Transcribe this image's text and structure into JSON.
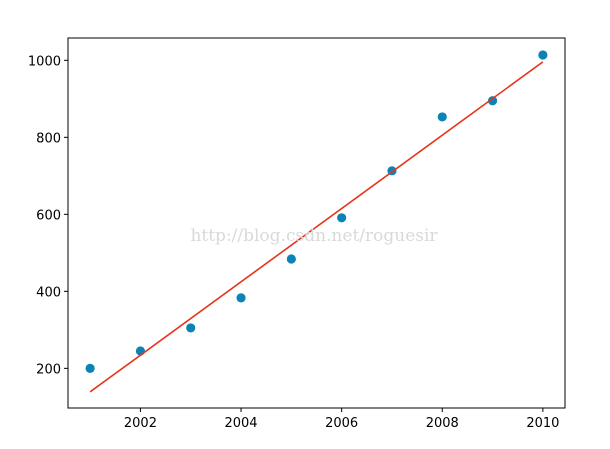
{
  "chart_data": {
    "type": "scatter",
    "title": "",
    "xlabel": "",
    "ylabel": "",
    "xlim": [
      2000.56,
      2010.44
    ],
    "ylim": [
      97,
      1058
    ],
    "grid": false,
    "xticks": [
      2002,
      2004,
      2006,
      2008,
      2010
    ],
    "yticks": [
      200,
      400,
      600,
      800,
      1000
    ],
    "series": [
      {
        "type": "scatter",
        "color": "#0b84b5",
        "x": [
          2001,
          2002,
          2003,
          2004,
          2005,
          2006,
          2007,
          2008,
          2009,
          2010
        ],
        "y": [
          200,
          245,
          305,
          383,
          484,
          591,
          713,
          853,
          895,
          1014
        ]
      },
      {
        "type": "line",
        "color": "#e8331c",
        "x": [
          2001,
          2010
        ],
        "y": [
          139,
          996
        ]
      }
    ]
  },
  "watermark": "http://blog.csdn.net/roguesir"
}
